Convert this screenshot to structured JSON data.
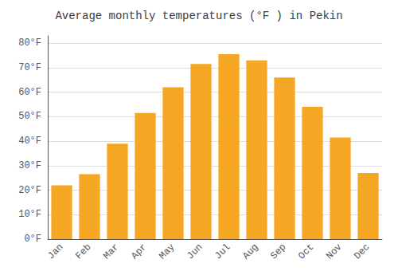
{
  "chart_data": {
    "type": "bar",
    "title": "Average monthly temperatures (°F ) in Pekin",
    "categories": [
      "Jan",
      "Feb",
      "Mar",
      "Apr",
      "May",
      "Jun",
      "Jul",
      "Aug",
      "Sep",
      "Oct",
      "Nov",
      "Dec"
    ],
    "values": [
      22,
      26.5,
      39,
      51.5,
      62,
      71.5,
      75.5,
      73,
      66,
      54,
      41.5,
      27
    ],
    "color": "#F5A623",
    "ylim": [
      0,
      83
    ],
    "yticks": [
      {
        "value": 0,
        "label": "0°F"
      },
      {
        "value": 10,
        "label": "10°F"
      },
      {
        "value": 20,
        "label": "20°F"
      },
      {
        "value": 30,
        "label": "30°F"
      },
      {
        "value": 40,
        "label": "40°F"
      },
      {
        "value": 50,
        "label": "50°F"
      },
      {
        "value": 60,
        "label": "60°F"
      },
      {
        "value": 70,
        "label": "70°F"
      },
      {
        "value": 80,
        "label": "80°F"
      }
    ],
    "grid": true
  }
}
